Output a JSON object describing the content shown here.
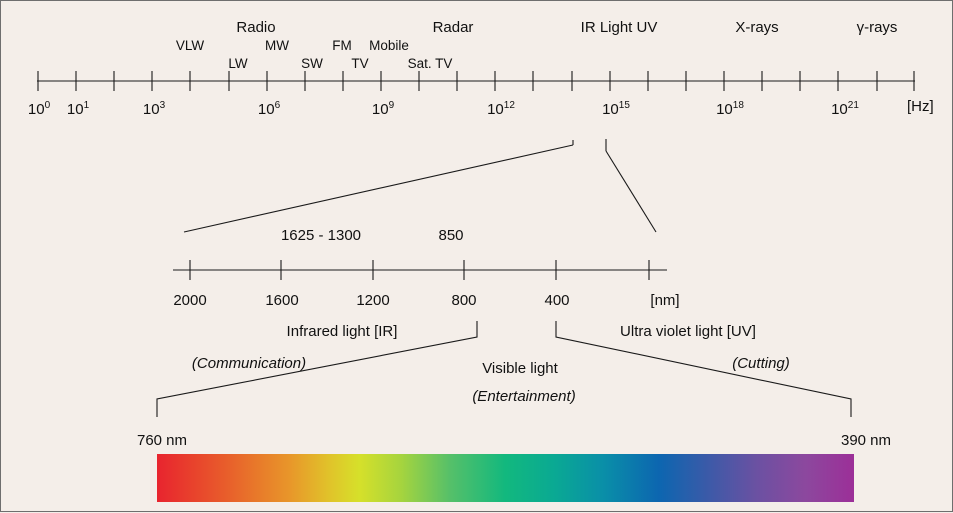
{
  "top_scale": {
    "band_labels": [
      "Radio",
      "Radar",
      "IR Light UV",
      "X-rays",
      "γ-rays"
    ],
    "sub_labels": [
      "VLW",
      "LW",
      "MW",
      "SW",
      "FM",
      "TV",
      "Mobile",
      "Sat. TV"
    ],
    "exponents": [
      "0",
      "1",
      "3",
      "6",
      "9",
      "12",
      "15",
      "18",
      "21"
    ],
    "base": "10",
    "unit": "[Hz]"
  },
  "zoom_scale": {
    "annotations": [
      "1625 - 1300",
      "850"
    ],
    "ticks": [
      "2000",
      "1600",
      "1200",
      "800",
      "400"
    ],
    "unit": "[nm]"
  },
  "regions": {
    "infrared": "Infrared light [IR]",
    "ultraviolet": "Ultra violet light [UV]",
    "visible": "Visible light",
    "infrared_use": "(Communication)",
    "visible_use": "(Entertainment)",
    "ultraviolet_use": "(Cutting)"
  },
  "spectrum": {
    "left_label": "760 nm",
    "right_label": "390 nm",
    "colors": [
      "#e8242e",
      "#e8962a",
      "#d6e02a",
      "#12b87e",
      "#0c66b0",
      "#6b51a2",
      "#9c2f98"
    ]
  }
}
